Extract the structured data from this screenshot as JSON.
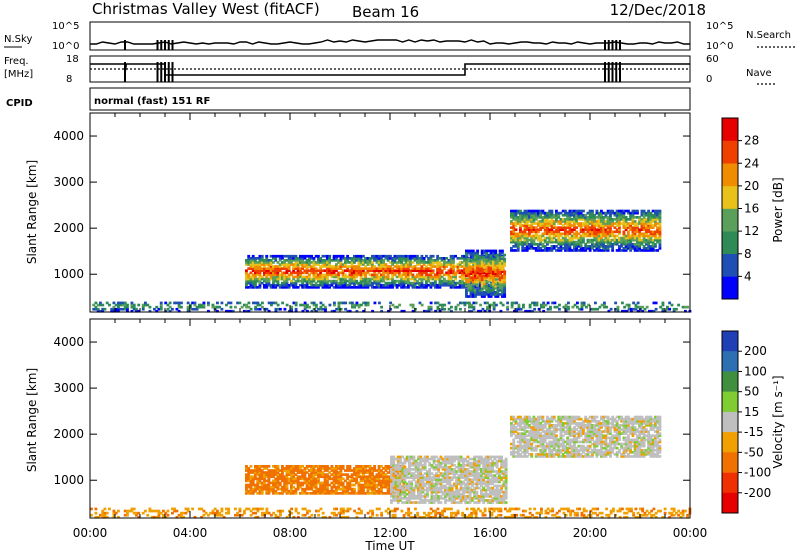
{
  "header": {
    "station": "Christmas Valley West (fitACF)",
    "beam": "Beam 16",
    "date": "12/Dec/2018"
  },
  "panels": {
    "nsky_label": "N.Sky",
    "nsky_ticks": [
      "10^5",
      "10^0"
    ],
    "nsearch_label": "N.Search",
    "freq_label_line1": "Freq.",
    "freq_label_line2": "[MHz]",
    "freq_ticks": [
      "18",
      "8"
    ],
    "nave_label": "Nave",
    "nave_ticks": [
      "60",
      "0"
    ],
    "cpid_label": "CPID",
    "cpid_value": "normal (fast) 151 RF"
  },
  "colors": {
    "power_scale": [
      "#0000ff",
      "#1f4fb4",
      "#2e8b57",
      "#5aa05a",
      "#e8c21a",
      "#f08c00",
      "#f04000",
      "#e60000"
    ],
    "velocity_scale": [
      "#1f3fb4",
      "#2e6fb4",
      "#3f8f3f",
      "#7fcc33",
      "#bfbfbf",
      "#f0a000",
      "#f07000",
      "#f03000",
      "#e60000"
    ]
  },
  "chart_data": [
    {
      "type": "heatmap",
      "title": "",
      "xlabel": "Time UT",
      "ylabel": "Slant Range [km]",
      "x_ticks": [
        "00:00",
        "04:00",
        "08:00",
        "12:00",
        "16:00",
        "20:00",
        "00:00"
      ],
      "y_ticks": [
        "1000",
        "2000",
        "3000",
        "4000"
      ],
      "ylim": [
        180,
        4500
      ],
      "colorbar": {
        "label": "Power [dB]",
        "ticks": [
          "4",
          "8",
          "12",
          "16",
          "20",
          "24",
          "28"
        ],
        "range": [
          0,
          32
        ]
      },
      "echo_regions": [
        {
          "t_start": 6.2,
          "t_end": 16.5,
          "range_min": 700,
          "range_max": 1400,
          "peak_power_db": 30
        },
        {
          "t_start": 15.0,
          "t_end": 16.6,
          "range_min": 500,
          "range_max": 1500,
          "peak_power_db": 30
        },
        {
          "t_start": 16.8,
          "t_end": 22.8,
          "range_min": 1500,
          "range_max": 2400,
          "peak_power_db": 28
        },
        {
          "t_start": 0.0,
          "t_end": 24.0,
          "range_min": 180,
          "range_max": 400,
          "peak_power_db": 14
        }
      ]
    },
    {
      "type": "heatmap",
      "title": "",
      "xlabel": "Time UT",
      "ylabel": "Slant Range [km]",
      "x_ticks": [
        "00:00",
        "04:00",
        "08:00",
        "12:00",
        "16:00",
        "20:00",
        "00:00"
      ],
      "y_ticks": [
        "1000",
        "2000",
        "3000",
        "4000"
      ],
      "ylim": [
        180,
        4500
      ],
      "colorbar": {
        "label": "Velocity [m s⁻¹]",
        "ticks": [
          "200",
          "100",
          "50",
          "15",
          "-15",
          "-50",
          "-100",
          "-200"
        ],
        "range": [
          -250,
          250
        ]
      },
      "echo_regions": [
        {
          "t_start": 6.2,
          "t_end": 12.5,
          "range_min": 700,
          "range_max": 1300,
          "velocity": -60
        },
        {
          "t_start": 12.0,
          "t_end": 16.6,
          "range_min": 500,
          "range_max": 1500,
          "velocity": 0
        },
        {
          "t_start": 16.8,
          "t_end": 22.8,
          "range_min": 1500,
          "range_max": 2400,
          "velocity": 0
        },
        {
          "t_start": 0.0,
          "t_end": 24.0,
          "range_min": 180,
          "range_max": 400,
          "velocity": -40
        }
      ]
    }
  ]
}
